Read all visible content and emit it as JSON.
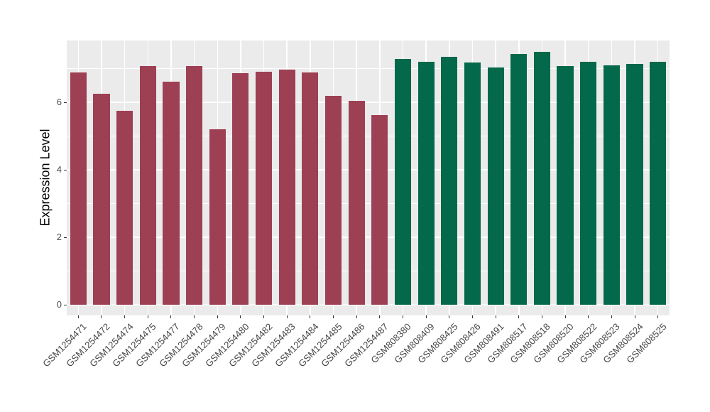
{
  "chart_data": {
    "type": "bar",
    "title": "",
    "xlabel": "",
    "ylabel": "Expression Level",
    "ylim": [
      0,
      7.84
    ],
    "yticks": [
      0,
      2,
      4,
      6
    ],
    "ytick_labels": [
      "0",
      "2",
      "4",
      "6"
    ],
    "y_minor_gridlines": [
      1,
      3,
      5,
      7
    ],
    "grid": "on",
    "legend_position": "none",
    "panel_background": "#ebebeb",
    "gridline_color": "#ffffff",
    "axis_text_color": "#4d4d4d",
    "tick_mark_color": "#333333",
    "series": [
      {
        "name": "left-red-group",
        "color": "#9d4053",
        "categories": [
          "GSM1254471",
          "GSM1254472",
          "GSM1254474",
          "GSM1254475",
          "GSM1254477",
          "GSM1254478",
          "GSM1254479",
          "GSM1254480",
          "GSM1254482",
          "GSM1254483",
          "GSM1254484",
          "GSM1254485",
          "GSM1254486",
          "GSM1254487"
        ],
        "values": [
          6.88,
          6.25,
          5.74,
          7.07,
          6.62,
          7.07,
          5.19,
          6.86,
          6.9,
          6.97,
          6.88,
          6.2,
          6.05,
          5.62
        ]
      },
      {
        "name": "right-green-group",
        "color": "#04684a",
        "categories": [
          "GSM808380",
          "GSM808409",
          "GSM808425",
          "GSM808426",
          "GSM808491",
          "GSM808517",
          "GSM808518",
          "GSM808520",
          "GSM808522",
          "GSM808523",
          "GSM808524",
          "GSM808525"
        ],
        "values": [
          7.28,
          7.19,
          7.35,
          7.17,
          7.03,
          7.43,
          7.49,
          7.07,
          7.21,
          7.09,
          7.14,
          7.19
        ]
      }
    ]
  }
}
